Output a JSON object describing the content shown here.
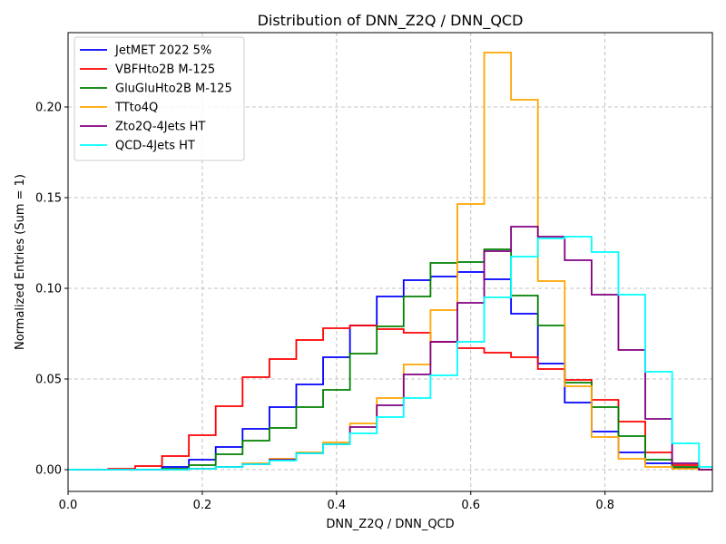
{
  "chart_data": {
    "type": "step-histogram",
    "title": "Distribution of DNN_Z2Q / DNN_QCD",
    "xlabel": "DNN_Z2Q / DNN_QCD",
    "ylabel": "Normalized Entries (Sum = 1)",
    "xlim": [
      0.0,
      0.96
    ],
    "ylim": [
      -0.012,
      0.241
    ],
    "xticks": [
      0.0,
      0.2,
      0.4,
      0.6,
      0.8
    ],
    "xtick_labels": [
      "0.0",
      "0.2",
      "0.4",
      "0.6",
      "0.8"
    ],
    "yticks": [
      0.0,
      0.05,
      0.1,
      0.15,
      0.2
    ],
    "ytick_labels": [
      "0.00",
      "0.05",
      "0.10",
      "0.15",
      "0.20"
    ],
    "grid": true,
    "legend_position": "upper-left",
    "bin_edges": [
      0.0,
      0.02,
      0.06,
      0.1,
      0.14,
      0.18,
      0.22,
      0.26,
      0.3,
      0.34,
      0.38,
      0.42,
      0.46,
      0.5,
      0.54,
      0.58,
      0.62,
      0.66,
      0.7,
      0.74,
      0.78,
      0.82,
      0.86,
      0.9,
      0.94,
      0.96
    ],
    "series": [
      {
        "name": "JetMET 2022 5%",
        "color": "#0000ff",
        "values": [
          0,
          0,
          0,
          0,
          0.0015,
          0.0055,
          0.0125,
          0.0225,
          0.0345,
          0.047,
          0.062,
          0.0795,
          0.0955,
          0.1045,
          0.1065,
          0.109,
          0.105,
          0.086,
          0.0585,
          0.037,
          0.021,
          0.0095,
          0.0035,
          0.001,
          0
        ]
      },
      {
        "name": "VBFHto2B M-125",
        "color": "#ff0000",
        "values": [
          0,
          0,
          0.0005,
          0.002,
          0.0075,
          0.019,
          0.035,
          0.051,
          0.061,
          0.0715,
          0.078,
          0.0795,
          0.0775,
          0.0755,
          0.0705,
          0.067,
          0.0645,
          0.062,
          0.0555,
          0.0495,
          0.0385,
          0.0265,
          0.0095,
          0.0025,
          0
        ]
      },
      {
        "name": "GluGluHto2B M-125",
        "color": "#008000",
        "values": [
          0,
          0,
          0,
          0,
          0.0005,
          0.0025,
          0.0085,
          0.016,
          0.023,
          0.0345,
          0.044,
          0.064,
          0.079,
          0.0955,
          0.114,
          0.1145,
          0.1215,
          0.096,
          0.0795,
          0.048,
          0.0345,
          0.0185,
          0.0055,
          0.0015,
          0
        ]
      },
      {
        "name": "TTto4Q",
        "color": "#ffa500",
        "values": [
          0,
          0,
          0,
          0,
          0,
          0.0005,
          0.0015,
          0.0035,
          0.006,
          0.0095,
          0.015,
          0.0255,
          0.0395,
          0.058,
          0.088,
          0.1465,
          0.23,
          0.204,
          0.104,
          0.046,
          0.018,
          0.006,
          0.0015,
          0.0005,
          0
        ]
      },
      {
        "name": "Zto2Q-4Jets HT",
        "color": "#800080",
        "values": [
          0,
          0,
          0,
          0,
          0,
          0.0005,
          0.0015,
          0.003,
          0.0055,
          0.009,
          0.014,
          0.0235,
          0.0355,
          0.0525,
          0.0705,
          0.092,
          0.1205,
          0.134,
          0.1285,
          0.1155,
          0.0965,
          0.066,
          0.028,
          0.0035,
          0
        ]
      },
      {
        "name": "QCD-4Jets HT",
        "color": "#00ffff",
        "values": [
          0,
          0,
          0,
          0,
          0,
          0.0005,
          0.0015,
          0.003,
          0.005,
          0.009,
          0.014,
          0.02,
          0.029,
          0.0395,
          0.052,
          0.0705,
          0.095,
          0.1175,
          0.1275,
          0.1285,
          0.12,
          0.0965,
          0.054,
          0.0145,
          0.0015
        ]
      }
    ]
  }
}
